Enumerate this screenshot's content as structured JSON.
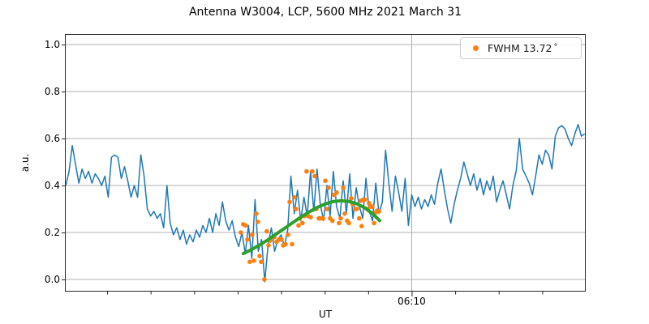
{
  "figure": {
    "background": "#ffffff",
    "axes_edge_color": "#262626",
    "text_color": "#000000"
  },
  "chart_data": {
    "type": "line",
    "title": "Antenna W3004, LCP, 5600 MHz 2021 March 31",
    "xlabel": "UT",
    "ylabel": "a.u.",
    "ylim": [
      -0.052,
      1.045
    ],
    "grid": {
      "horizontal": true,
      "vertical_at_major_x": true,
      "color": "#b0b0b0"
    },
    "yticks": {
      "values": [
        0.0,
        0.2,
        0.4,
        0.6,
        0.8,
        1.0
      ],
      "labels": [
        "0.0",
        "0.2",
        "0.4",
        "0.6",
        "0.8",
        "1.0"
      ]
    },
    "x_axis": {
      "unit": "minutes_of_day",
      "min": 354.06,
      "max": 378.0,
      "major_ticks": [
        370
      ],
      "major_tick_labels": [
        "06:10"
      ],
      "minor_ticks": [
        356,
        358,
        360,
        362,
        364,
        366,
        368,
        372,
        374,
        376
      ]
    },
    "legend": {
      "label": "FWHM 13.72",
      "degree_symbol": "°",
      "marker_color": "#ff7f0e",
      "position": "upper-right"
    },
    "series": [
      {
        "name": "antenna-signal",
        "kind": "line",
        "color": "#1f77b4",
        "linewidth": 1.5,
        "t_start": 354.1,
        "dt": 0.15,
        "values": [
          0.4,
          0.46,
          0.57,
          0.49,
          0.41,
          0.47,
          0.43,
          0.46,
          0.41,
          0.45,
          0.43,
          0.4,
          0.44,
          0.35,
          0.52,
          0.53,
          0.52,
          0.43,
          0.48,
          0.42,
          0.35,
          0.4,
          0.35,
          0.53,
          0.44,
          0.3,
          0.27,
          0.29,
          0.26,
          0.28,
          0.22,
          0.4,
          0.24,
          0.19,
          0.22,
          0.17,
          0.21,
          0.15,
          0.19,
          0.16,
          0.21,
          0.18,
          0.23,
          0.2,
          0.26,
          0.2,
          0.28,
          0.23,
          0.33,
          0.25,
          0.21,
          0.25,
          0.18,
          0.14,
          0.2,
          0.11,
          0.23,
          0.09,
          0.34,
          0.12,
          0.17,
          -0.01,
          0.15,
          0.22,
          0.12,
          0.17,
          0.19,
          0.14,
          0.21,
          0.44,
          0.28,
          0.38,
          0.25,
          0.35,
          0.27,
          0.46,
          0.29,
          0.47,
          0.32,
          0.25,
          0.4,
          0.27,
          0.46,
          0.31,
          0.26,
          0.42,
          0.28,
          0.45,
          0.26,
          0.39,
          0.31,
          0.26,
          0.43,
          0.29,
          0.25,
          0.41,
          0.28,
          0.33,
          0.55,
          0.41,
          0.29,
          0.44,
          0.37,
          0.29,
          0.43,
          0.23,
          0.36,
          0.31,
          0.35,
          0.3,
          0.34,
          0.31,
          0.36,
          0.32,
          0.41,
          0.47,
          0.38,
          0.3,
          0.24,
          0.32,
          0.38,
          0.43,
          0.5,
          0.45,
          0.4,
          0.45,
          0.38,
          0.43,
          0.36,
          0.42,
          0.38,
          0.44,
          0.33,
          0.38,
          0.42,
          0.36,
          0.3,
          0.4,
          0.46,
          0.6,
          0.47,
          0.44,
          0.41,
          0.36,
          0.44,
          0.53,
          0.49,
          0.55,
          0.53,
          0.47,
          0.61,
          0.645,
          0.655,
          0.64,
          0.6,
          0.57,
          0.62,
          0.66,
          0.61,
          0.62
        ]
      },
      {
        "name": "fwhm-scan-points",
        "kind": "scatter",
        "color": "#ff7f0e",
        "marker": "o",
        "t": [
          362.15,
          362.26,
          362.37,
          362.45,
          362.56,
          362.67,
          362.75,
          362.86,
          362.93,
          363.01,
          363.08,
          363.23,
          363.34,
          363.42,
          363.49,
          363.6,
          363.68,
          363.79,
          363.9,
          364.01,
          364.09,
          364.2,
          364.31,
          364.39,
          364.5,
          364.61,
          364.68,
          364.8,
          364.87,
          364.98,
          365.06,
          365.17,
          365.24,
          365.36,
          365.43,
          365.54,
          365.62,
          365.73,
          365.8,
          365.92,
          366.03,
          366.1,
          366.18,
          366.25,
          366.36,
          366.44,
          366.55,
          366.66,
          366.74,
          366.85,
          366.92,
          367.03,
          367.11,
          367.22,
          367.29,
          367.41,
          367.48,
          367.59,
          367.67,
          367.7,
          367.78,
          367.85,
          367.97,
          368.04,
          368.12,
          368.19,
          368.27,
          368.34,
          368.41,
          368.49
        ],
        "values": [
          0.2,
          0.235,
          0.23,
          0.17,
          0.075,
          0.19,
          0.08,
          0.28,
          0.245,
          0.1,
          0.075,
          0.0,
          0.205,
          0.145,
          0.165,
          0.18,
          0.18,
          0.16,
          0.17,
          0.17,
          0.145,
          0.15,
          0.19,
          0.33,
          0.15,
          0.35,
          0.3,
          0.23,
          0.26,
          0.24,
          0.27,
          0.46,
          0.27,
          0.265,
          0.46,
          0.44,
          0.3,
          0.26,
          0.26,
          0.26,
          0.42,
          0.3,
          0.39,
          0.26,
          0.25,
          0.36,
          0.37,
          0.24,
          0.26,
          0.39,
          0.28,
          0.25,
          0.24,
          0.345,
          0.32,
          0.3,
          0.3,
          0.26,
          0.335,
          0.227,
          0.34,
          0.34,
          0.3,
          0.325,
          0.31,
          0.31,
          0.24,
          0.285,
          0.293,
          0.29
        ]
      },
      {
        "name": "gaussian-fit",
        "kind": "line",
        "color": "#2ca02c",
        "linewidth": 4,
        "t": [
          362.26,
          362.63,
          363.01,
          363.38,
          363.75,
          364.13,
          364.5,
          364.87,
          365.24,
          365.62,
          365.99,
          366.36,
          366.74,
          367.11,
          367.48,
          367.85,
          368.23,
          368.53
        ],
        "values": [
          0.11,
          0.127,
          0.147,
          0.168,
          0.192,
          0.216,
          0.24,
          0.263,
          0.285,
          0.305,
          0.32,
          0.331,
          0.335,
          0.332,
          0.322,
          0.305,
          0.278,
          0.25
        ]
      }
    ]
  }
}
